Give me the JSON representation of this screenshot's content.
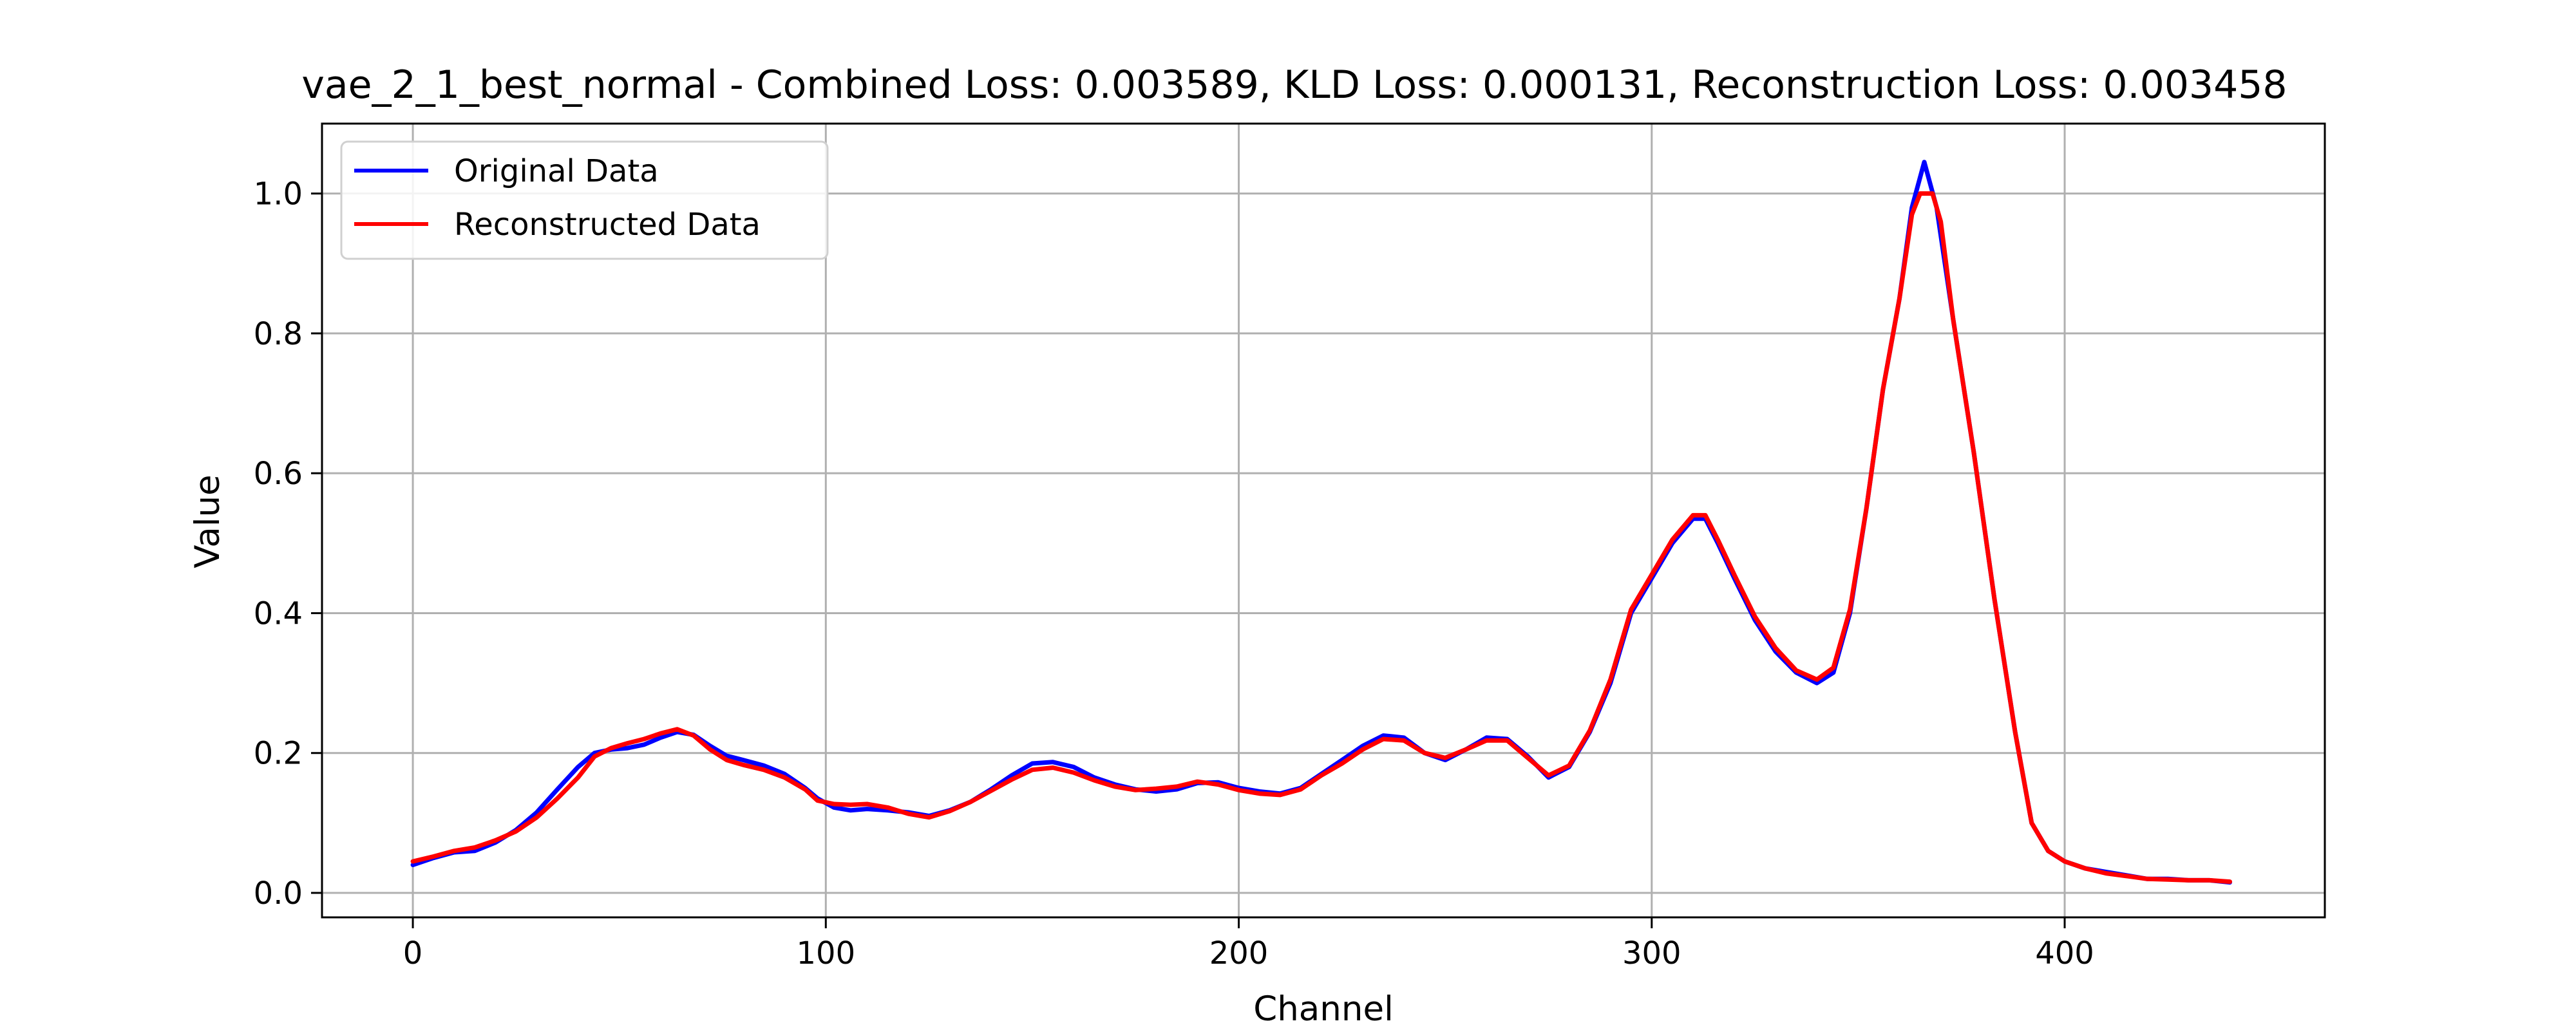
{
  "chart_data": {
    "type": "line",
    "title": "vae_2_1_best_normal - Combined Loss: 0.003589, KLD Loss: 0.000131, Reconstruction Loss: 0.003458",
    "xlabel": "Channel",
    "ylabel": "Value",
    "xlim": [
      -22,
      463
    ],
    "ylim": [
      -0.035,
      1.1
    ],
    "x_ticks": [
      0,
      100,
      200,
      300,
      400
    ],
    "x_tick_labels": [
      "0",
      "100",
      "200",
      "300",
      "400"
    ],
    "y_ticks": [
      0.0,
      0.2,
      0.4,
      0.6,
      0.8,
      1.0
    ],
    "y_tick_labels": [
      "0.0",
      "0.2",
      "0.4",
      "0.6",
      "0.8",
      "1.0"
    ],
    "grid": true,
    "legend_position": "top-left",
    "series": [
      {
        "name": "Original Data",
        "color": "#0000ff",
        "points": [
          [
            0,
            0.04
          ],
          [
            5,
            0.05
          ],
          [
            10,
            0.058
          ],
          [
            15,
            0.06
          ],
          [
            20,
            0.072
          ],
          [
            25,
            0.09
          ],
          [
            30,
            0.115
          ],
          [
            35,
            0.148
          ],
          [
            40,
            0.18
          ],
          [
            44,
            0.2
          ],
          [
            48,
            0.205
          ],
          [
            52,
            0.207
          ],
          [
            56,
            0.212
          ],
          [
            60,
            0.222
          ],
          [
            64,
            0.23
          ],
          [
            68,
            0.226
          ],
          [
            72,
            0.21
          ],
          [
            76,
            0.196
          ],
          [
            80,
            0.19
          ],
          [
            85,
            0.182
          ],
          [
            90,
            0.17
          ],
          [
            95,
            0.15
          ],
          [
            98,
            0.135
          ],
          [
            102,
            0.122
          ],
          [
            106,
            0.118
          ],
          [
            110,
            0.12
          ],
          [
            115,
            0.118
          ],
          [
            120,
            0.115
          ],
          [
            125,
            0.11
          ],
          [
            130,
            0.118
          ],
          [
            135,
            0.13
          ],
          [
            140,
            0.148
          ],
          [
            145,
            0.168
          ],
          [
            150,
            0.185
          ],
          [
            155,
            0.187
          ],
          [
            160,
            0.18
          ],
          [
            165,
            0.165
          ],
          [
            170,
            0.155
          ],
          [
            175,
            0.148
          ],
          [
            180,
            0.145
          ],
          [
            185,
            0.148
          ],
          [
            190,
            0.157
          ],
          [
            195,
            0.158
          ],
          [
            200,
            0.15
          ],
          [
            205,
            0.145
          ],
          [
            210,
            0.142
          ],
          [
            215,
            0.15
          ],
          [
            220,
            0.17
          ],
          [
            225,
            0.19
          ],
          [
            230,
            0.21
          ],
          [
            235,
            0.225
          ],
          [
            240,
            0.222
          ],
          [
            245,
            0.2
          ],
          [
            250,
            0.19
          ],
          [
            255,
            0.205
          ],
          [
            260,
            0.222
          ],
          [
            265,
            0.22
          ],
          [
            270,
            0.195
          ],
          [
            275,
            0.165
          ],
          [
            280,
            0.18
          ],
          [
            285,
            0.23
          ],
          [
            290,
            0.3
          ],
          [
            295,
            0.4
          ],
          [
            300,
            0.45
          ],
          [
            305,
            0.5
          ],
          [
            310,
            0.535
          ],
          [
            313,
            0.535
          ],
          [
            316,
            0.5
          ],
          [
            320,
            0.45
          ],
          [
            325,
            0.39
          ],
          [
            330,
            0.345
          ],
          [
            335,
            0.315
          ],
          [
            340,
            0.3
          ],
          [
            344,
            0.315
          ],
          [
            348,
            0.4
          ],
          [
            352,
            0.55
          ],
          [
            356,
            0.72
          ],
          [
            360,
            0.85
          ],
          [
            363,
            0.98
          ],
          [
            366,
            1.045
          ],
          [
            369,
            0.98
          ],
          [
            373,
            0.82
          ],
          [
            378,
            0.63
          ],
          [
            383,
            0.42
          ],
          [
            388,
            0.23
          ],
          [
            392,
            0.1
          ],
          [
            396,
            0.06
          ],
          [
            400,
            0.045
          ],
          [
            405,
            0.035
          ],
          [
            410,
            0.03
          ],
          [
            415,
            0.025
          ],
          [
            420,
            0.02
          ],
          [
            425,
            0.02
          ],
          [
            430,
            0.018
          ],
          [
            435,
            0.018
          ],
          [
            440,
            0.015
          ]
        ]
      },
      {
        "name": "Reconstructed Data",
        "color": "#ff0000",
        "points": [
          [
            0,
            0.045
          ],
          [
            5,
            0.052
          ],
          [
            10,
            0.06
          ],
          [
            15,
            0.065
          ],
          [
            20,
            0.075
          ],
          [
            25,
            0.088
          ],
          [
            30,
            0.108
          ],
          [
            35,
            0.135
          ],
          [
            40,
            0.165
          ],
          [
            44,
            0.195
          ],
          [
            48,
            0.207
          ],
          [
            52,
            0.214
          ],
          [
            56,
            0.22
          ],
          [
            60,
            0.228
          ],
          [
            64,
            0.234
          ],
          [
            68,
            0.225
          ],
          [
            72,
            0.205
          ],
          [
            76,
            0.19
          ],
          [
            80,
            0.183
          ],
          [
            85,
            0.176
          ],
          [
            90,
            0.165
          ],
          [
            95,
            0.148
          ],
          [
            98,
            0.132
          ],
          [
            102,
            0.127
          ],
          [
            106,
            0.126
          ],
          [
            110,
            0.127
          ],
          [
            115,
            0.122
          ],
          [
            120,
            0.113
          ],
          [
            125,
            0.108
          ],
          [
            130,
            0.117
          ],
          [
            135,
            0.13
          ],
          [
            140,
            0.146
          ],
          [
            145,
            0.162
          ],
          [
            150,
            0.176
          ],
          [
            155,
            0.179
          ],
          [
            160,
            0.172
          ],
          [
            165,
            0.161
          ],
          [
            170,
            0.152
          ],
          [
            175,
            0.147
          ],
          [
            180,
            0.149
          ],
          [
            185,
            0.152
          ],
          [
            190,
            0.159
          ],
          [
            195,
            0.155
          ],
          [
            200,
            0.147
          ],
          [
            205,
            0.142
          ],
          [
            210,
            0.14
          ],
          [
            215,
            0.148
          ],
          [
            220,
            0.168
          ],
          [
            225,
            0.185
          ],
          [
            230,
            0.205
          ],
          [
            235,
            0.22
          ],
          [
            240,
            0.218
          ],
          [
            245,
            0.2
          ],
          [
            250,
            0.193
          ],
          [
            255,
            0.205
          ],
          [
            260,
            0.218
          ],
          [
            265,
            0.218
          ],
          [
            270,
            0.193
          ],
          [
            275,
            0.168
          ],
          [
            280,
            0.182
          ],
          [
            285,
            0.232
          ],
          [
            290,
            0.305
          ],
          [
            295,
            0.405
          ],
          [
            300,
            0.455
          ],
          [
            305,
            0.505
          ],
          [
            310,
            0.54
          ],
          [
            313,
            0.54
          ],
          [
            316,
            0.505
          ],
          [
            320,
            0.455
          ],
          [
            325,
            0.395
          ],
          [
            330,
            0.35
          ],
          [
            335,
            0.318
          ],
          [
            340,
            0.305
          ],
          [
            344,
            0.322
          ],
          [
            348,
            0.405
          ],
          [
            352,
            0.55
          ],
          [
            356,
            0.72
          ],
          [
            360,
            0.85
          ],
          [
            363,
            0.97
          ],
          [
            365,
            1.0
          ],
          [
            368,
            1.0
          ],
          [
            370,
            0.96
          ],
          [
            373,
            0.82
          ],
          [
            378,
            0.63
          ],
          [
            383,
            0.42
          ],
          [
            388,
            0.23
          ],
          [
            392,
            0.1
          ],
          [
            396,
            0.06
          ],
          [
            400,
            0.045
          ],
          [
            405,
            0.035
          ],
          [
            410,
            0.028
          ],
          [
            415,
            0.024
          ],
          [
            420,
            0.02
          ],
          [
            425,
            0.019
          ],
          [
            430,
            0.018
          ],
          [
            435,
            0.018
          ],
          [
            440,
            0.016
          ]
        ]
      }
    ]
  }
}
